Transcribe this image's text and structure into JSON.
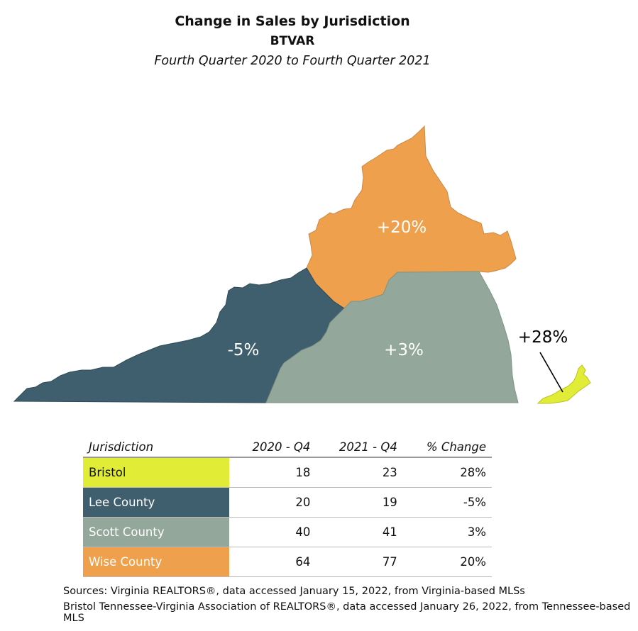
{
  "title": "Change in Sales by Jurisdiction",
  "subtitle": "BTVAR",
  "period": "Fourth Quarter 2020 to Fourth Quarter 2021",
  "colors": {
    "bristol": "#E1EC37",
    "lee": "#3F5F6E",
    "scott": "#93A89A",
    "wise": "#EFA04C"
  },
  "map_labels": {
    "wise": "+20%",
    "lee": "-5%",
    "scott": "+3%",
    "bristol": "+28%"
  },
  "table": {
    "headers": [
      "Jurisdiction",
      "2020 - Q4",
      "2021 - Q4",
      "% Change"
    ],
    "rows": [
      {
        "name": "Bristol",
        "q4_2020": "18",
        "q4_2021": "23",
        "change": "28%"
      },
      {
        "name": "Lee County",
        "q4_2020": "20",
        "q4_2021": "19",
        "change": "-5%"
      },
      {
        "name": "Scott County",
        "q4_2020": "40",
        "q4_2021": "41",
        "change": "3%"
      },
      {
        "name": "Wise County",
        "q4_2020": "64",
        "q4_2021": "77",
        "change": "20%"
      }
    ]
  },
  "sources": [
    "Sources: Virginia REALTORS®, data accessed January 15, 2022, from Virginia-based MLSs",
    "Bristol Tennessee-Virginia Association of REALTORS®, data accessed January 26, 2022, from Tennessee-based MLS"
  ]
}
